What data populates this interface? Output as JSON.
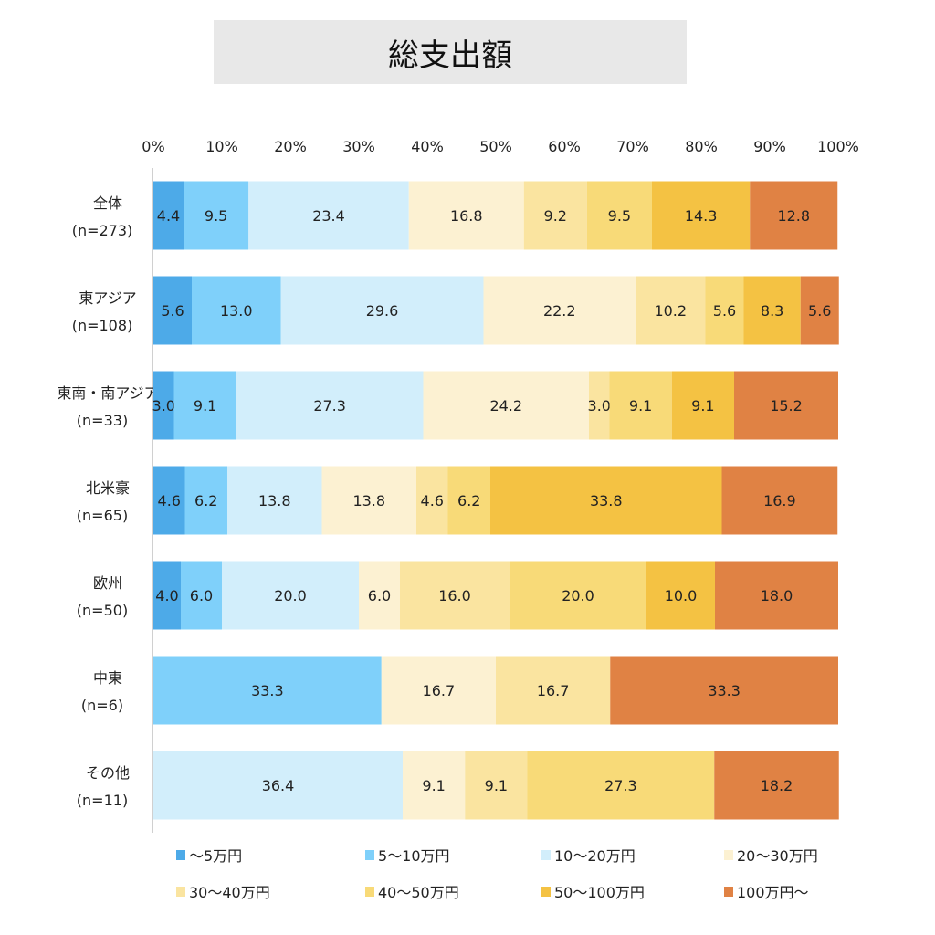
{
  "chart_data": {
    "type": "bar",
    "orientation": "horizontal",
    "stacked": true,
    "title": "総支出額",
    "xlim": [
      0,
      100
    ],
    "x_ticks": [
      "0%",
      "10%",
      "20%",
      "30%",
      "40%",
      "50%",
      "60%",
      "70%",
      "80%",
      "90%",
      "100%"
    ],
    "grid": false,
    "legend_position": "bottom",
    "categories": [
      [
        "全体",
        "(n=273)"
      ],
      [
        "東アジア",
        "(n=108)"
      ],
      [
        "東南・南アジア",
        "(n=33)"
      ],
      [
        "北米豪",
        "(n=65)"
      ],
      [
        "欧州",
        "(n=50)"
      ],
      [
        "中東",
        "(n=6)"
      ],
      [
        "その他",
        "(n=11)"
      ]
    ],
    "series": [
      {
        "name": "～5万円",
        "color": "#4DAAE8",
        "values": [
          4.4,
          5.6,
          3.0,
          4.6,
          4.0,
          0,
          0
        ]
      },
      {
        "name": "5～10万円",
        "color": "#7FD0FA",
        "values": [
          9.5,
          13.0,
          9.1,
          6.2,
          6.0,
          33.3,
          0
        ]
      },
      {
        "name": "10～20万円",
        "color": "#D2EEFB",
        "values": [
          23.4,
          29.6,
          27.3,
          13.8,
          20.0,
          0,
          36.4
        ]
      },
      {
        "name": "20～30万円",
        "color": "#FCF1D2",
        "values": [
          16.8,
          22.2,
          24.2,
          13.8,
          6.0,
          16.7,
          9.1
        ]
      },
      {
        "name": "30～40万円",
        "color": "#FAE4A0",
        "values": [
          9.2,
          10.2,
          3.0,
          4.6,
          16.0,
          16.7,
          9.1
        ]
      },
      {
        "name": "40～50万円",
        "color": "#F8DA78",
        "values": [
          9.5,
          5.6,
          9.1,
          6.2,
          20.0,
          0,
          27.3
        ]
      },
      {
        "name": "50～100万円",
        "color": "#F4C243",
        "values": [
          14.3,
          8.3,
          9.1,
          33.8,
          10.0,
          0,
          0
        ]
      },
      {
        "name": "100万円～",
        "color": "#E08244",
        "values": [
          12.8,
          5.6,
          15.2,
          16.9,
          18.0,
          33.3,
          18.2
        ]
      }
    ]
  }
}
